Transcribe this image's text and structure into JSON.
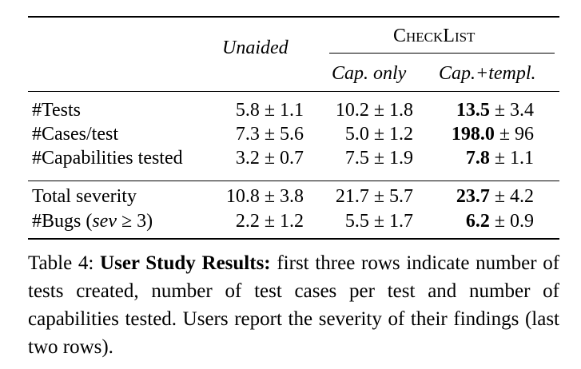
{
  "table": {
    "header": {
      "unaided": "Unaided",
      "group": "CheckList",
      "sub": [
        "Cap. only",
        "Cap.+templ."
      ]
    },
    "rows": [
      {
        "label": "#Tests",
        "cells": [
          {
            "mean": "5.8",
            "sd": "± 1.1"
          },
          {
            "mean": "10.2",
            "sd": "± 1.8"
          },
          {
            "mean": "13.5",
            "sd": "± 3.4"
          }
        ]
      },
      {
        "label": "#Cases/test",
        "cells": [
          {
            "mean": "7.3",
            "sd": "± 5.6"
          },
          {
            "mean": "5.0",
            "sd": "± 1.2"
          },
          {
            "mean": "198.0",
            "sd": "± 96"
          }
        ]
      },
      {
        "label": "#Capabilities tested",
        "cells": [
          {
            "mean": "3.2",
            "sd": "± 0.7"
          },
          {
            "mean": "7.5",
            "sd": "± 1.9"
          },
          {
            "mean": "7.8",
            "sd": "± 1.1"
          }
        ]
      },
      {
        "label": "Total severity",
        "cells": [
          {
            "mean": "10.8",
            "sd": "± 3.8"
          },
          {
            "mean": "21.7",
            "sd": "± 5.7"
          },
          {
            "mean": "23.7",
            "sd": "± 4.2"
          }
        ]
      },
      {
        "label": [
          "#Bugs (",
          "sev",
          " ≥ 3)"
        ],
        "cells": [
          {
            "mean": "2.2",
            "sd": "± 1.2"
          },
          {
            "mean": "5.5",
            "sd": "± 1.7"
          },
          {
            "mean": "6.2",
            "sd": "± 0.9"
          }
        ]
      }
    ]
  },
  "caption": {
    "label": "Table 4:",
    "title": "User Study Results:",
    "text": "first three rows indicate number of tests created, number of test cases per test and number of capabilities tested. Users report the severity of their findings (last two rows)."
  }
}
